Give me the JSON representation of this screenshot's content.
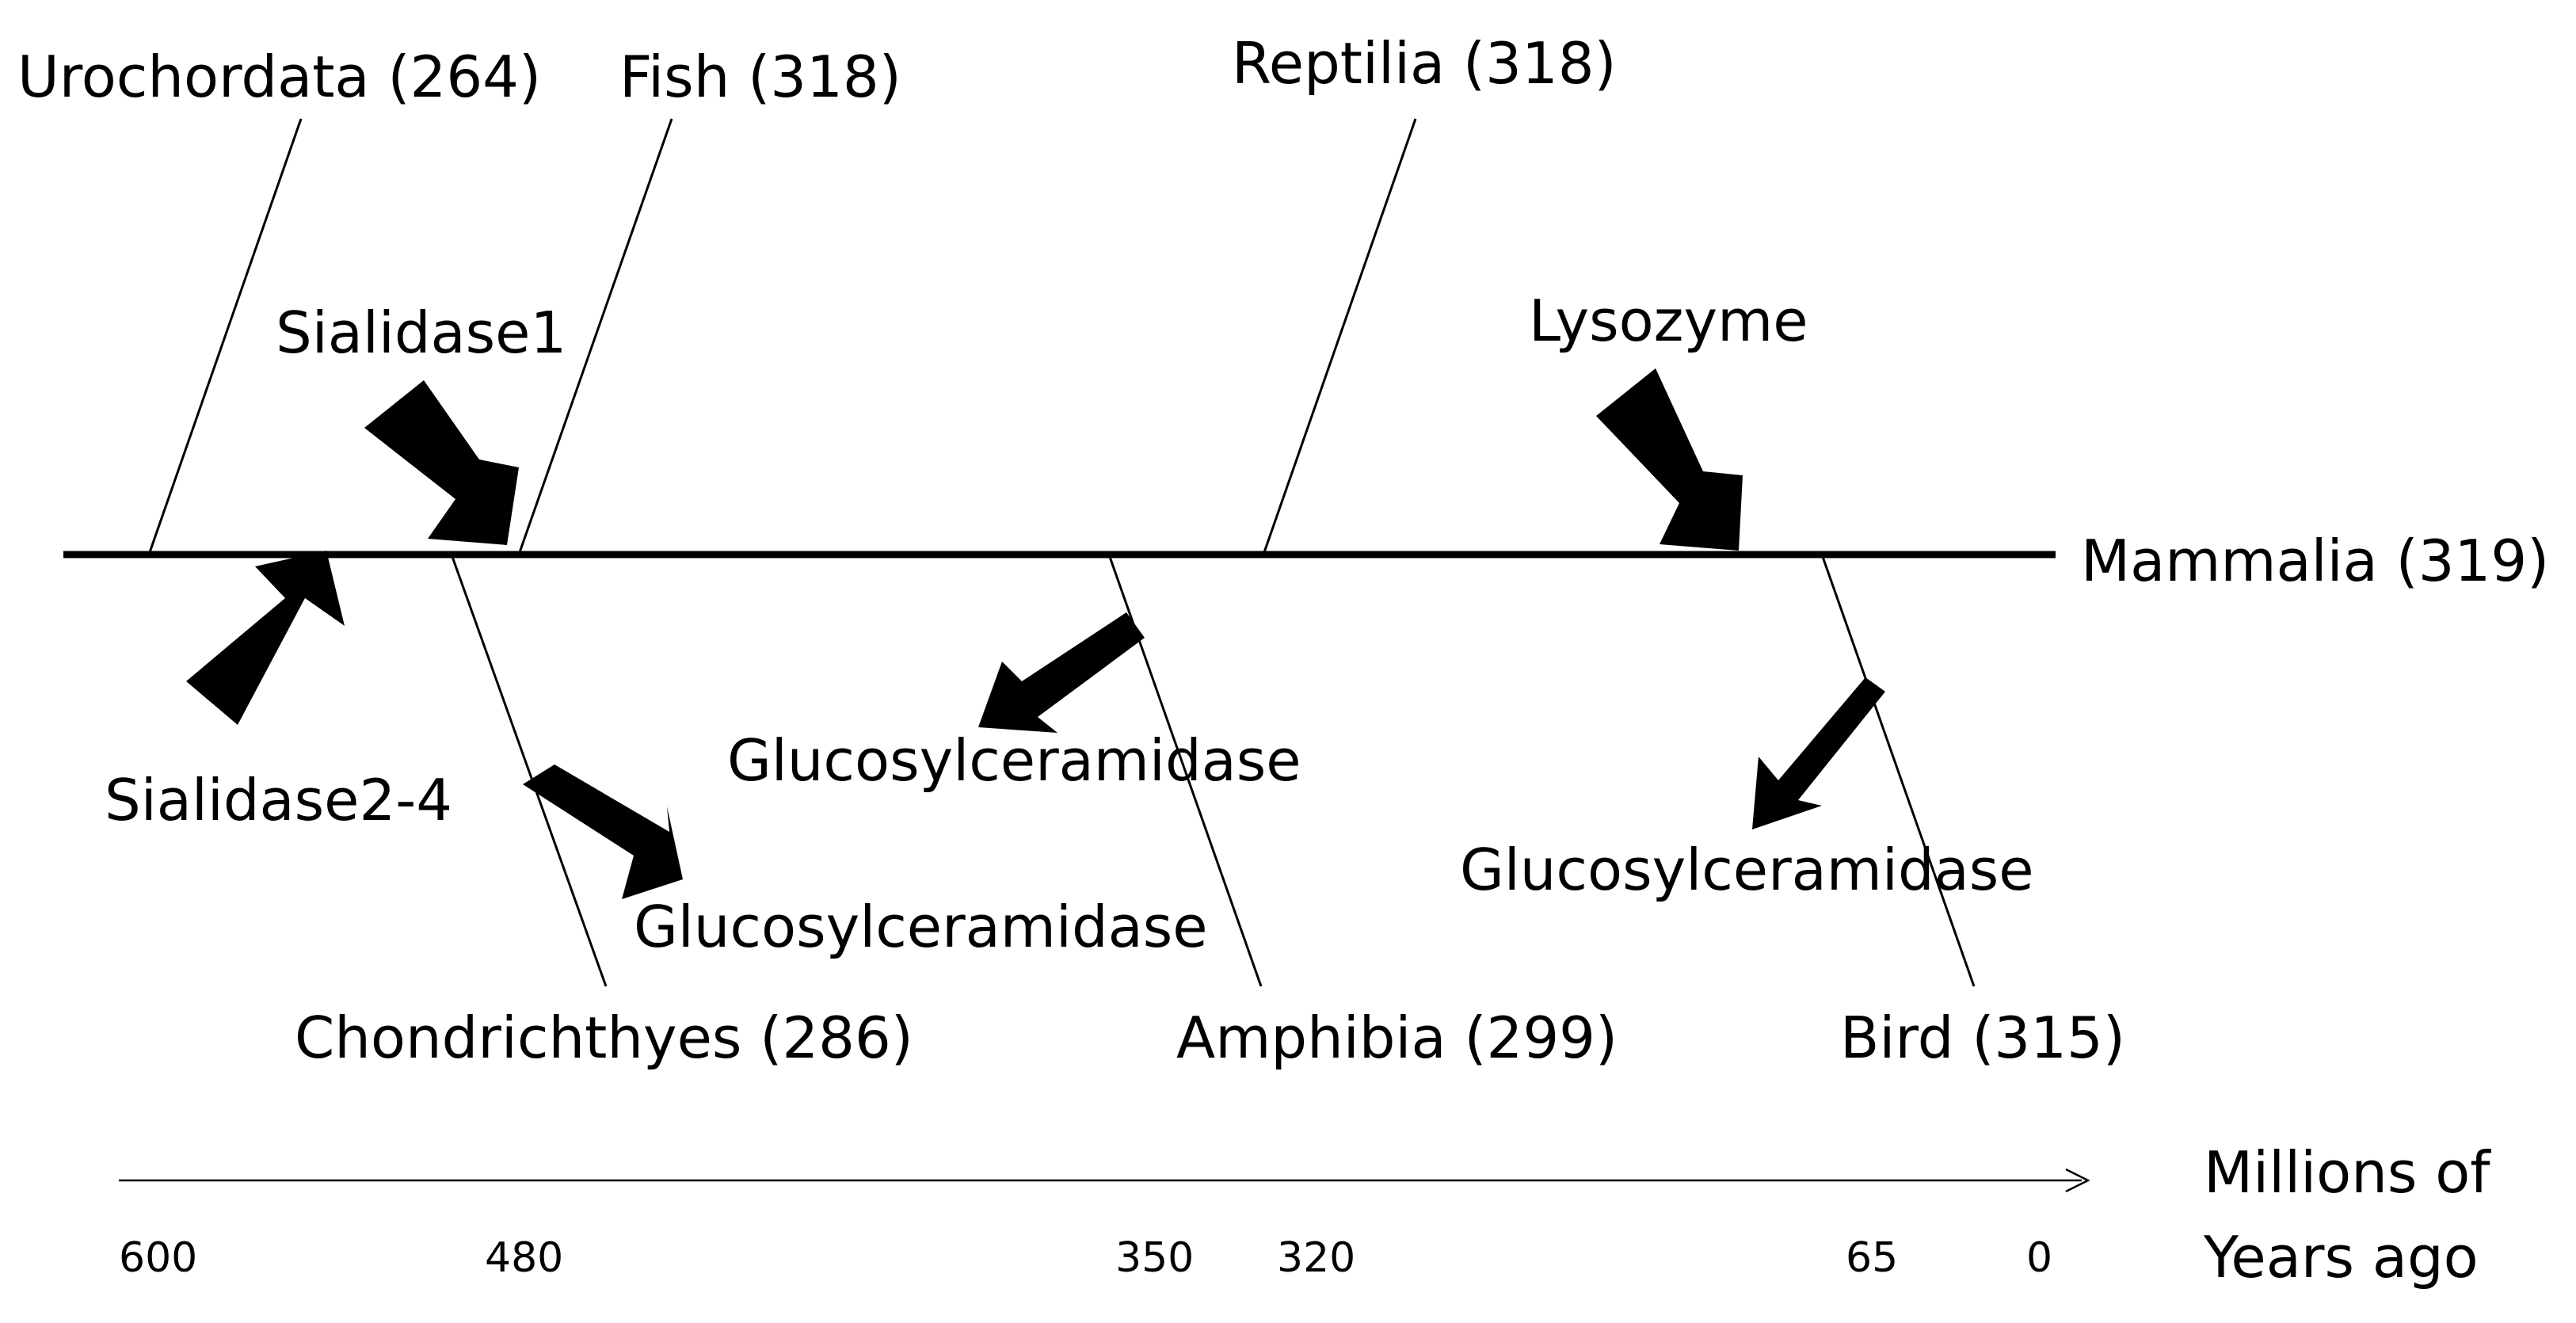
{
  "taxa": {
    "urochordata": "Urochordata (264)",
    "fish": "Fish (318)",
    "reptilia": "Reptilia (318)",
    "mammalia": "Mammalia (319)",
    "chondrichthyes": "Chondrichthyes (286)",
    "amphibia": "Amphibia (299)",
    "bird": "Bird (315)"
  },
  "events": {
    "sialidase1": "Sialidase1",
    "sialidase2_4": "Sialidase2-4",
    "lysozyme": "Lysozyme",
    "glucosylceramidase_chondrichthyes": "Glucosylceramidase",
    "glucosylceramidase_amphibia": "Glucosylceramidase",
    "glucosylceramidase_bird": "Glucosylceramidase"
  },
  "timeline": {
    "unit_label_line1": "Millions of",
    "unit_label_line2": "Years ago",
    "ticks": [
      "600",
      "480",
      "350",
      "320",
      "65",
      "0"
    ]
  }
}
